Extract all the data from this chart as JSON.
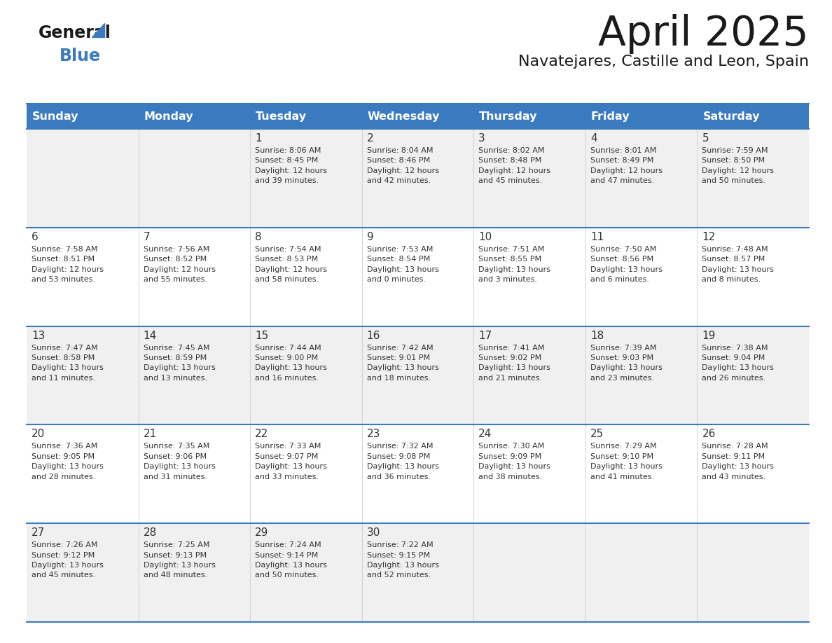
{
  "title": "April 2025",
  "subtitle": "Navatejares, Castille and Leon, Spain",
  "header_bg": "#3a7abf",
  "header_text": "#ffffff",
  "row_bg_even": "#f0f0f0",
  "row_bg_odd": "#ffffff",
  "border_color": "#3a7abf",
  "day_headers": [
    "Sunday",
    "Monday",
    "Tuesday",
    "Wednesday",
    "Thursday",
    "Friday",
    "Saturday"
  ],
  "days": [
    {
      "day": "",
      "info": ""
    },
    {
      "day": "",
      "info": ""
    },
    {
      "day": "1",
      "info": "Sunrise: 8:06 AM\nSunset: 8:45 PM\nDaylight: 12 hours\nand 39 minutes."
    },
    {
      "day": "2",
      "info": "Sunrise: 8:04 AM\nSunset: 8:46 PM\nDaylight: 12 hours\nand 42 minutes."
    },
    {
      "day": "3",
      "info": "Sunrise: 8:02 AM\nSunset: 8:48 PM\nDaylight: 12 hours\nand 45 minutes."
    },
    {
      "day": "4",
      "info": "Sunrise: 8:01 AM\nSunset: 8:49 PM\nDaylight: 12 hours\nand 47 minutes."
    },
    {
      "day": "5",
      "info": "Sunrise: 7:59 AM\nSunset: 8:50 PM\nDaylight: 12 hours\nand 50 minutes."
    },
    {
      "day": "6",
      "info": "Sunrise: 7:58 AM\nSunset: 8:51 PM\nDaylight: 12 hours\nand 53 minutes."
    },
    {
      "day": "7",
      "info": "Sunrise: 7:56 AM\nSunset: 8:52 PM\nDaylight: 12 hours\nand 55 minutes."
    },
    {
      "day": "8",
      "info": "Sunrise: 7:54 AM\nSunset: 8:53 PM\nDaylight: 12 hours\nand 58 minutes."
    },
    {
      "day": "9",
      "info": "Sunrise: 7:53 AM\nSunset: 8:54 PM\nDaylight: 13 hours\nand 0 minutes."
    },
    {
      "day": "10",
      "info": "Sunrise: 7:51 AM\nSunset: 8:55 PM\nDaylight: 13 hours\nand 3 minutes."
    },
    {
      "day": "11",
      "info": "Sunrise: 7:50 AM\nSunset: 8:56 PM\nDaylight: 13 hours\nand 6 minutes."
    },
    {
      "day": "12",
      "info": "Sunrise: 7:48 AM\nSunset: 8:57 PM\nDaylight: 13 hours\nand 8 minutes."
    },
    {
      "day": "13",
      "info": "Sunrise: 7:47 AM\nSunset: 8:58 PM\nDaylight: 13 hours\nand 11 minutes."
    },
    {
      "day": "14",
      "info": "Sunrise: 7:45 AM\nSunset: 8:59 PM\nDaylight: 13 hours\nand 13 minutes."
    },
    {
      "day": "15",
      "info": "Sunrise: 7:44 AM\nSunset: 9:00 PM\nDaylight: 13 hours\nand 16 minutes."
    },
    {
      "day": "16",
      "info": "Sunrise: 7:42 AM\nSunset: 9:01 PM\nDaylight: 13 hours\nand 18 minutes."
    },
    {
      "day": "17",
      "info": "Sunrise: 7:41 AM\nSunset: 9:02 PM\nDaylight: 13 hours\nand 21 minutes."
    },
    {
      "day": "18",
      "info": "Sunrise: 7:39 AM\nSunset: 9:03 PM\nDaylight: 13 hours\nand 23 minutes."
    },
    {
      "day": "19",
      "info": "Sunrise: 7:38 AM\nSunset: 9:04 PM\nDaylight: 13 hours\nand 26 minutes."
    },
    {
      "day": "20",
      "info": "Sunrise: 7:36 AM\nSunset: 9:05 PM\nDaylight: 13 hours\nand 28 minutes."
    },
    {
      "day": "21",
      "info": "Sunrise: 7:35 AM\nSunset: 9:06 PM\nDaylight: 13 hours\nand 31 minutes."
    },
    {
      "day": "22",
      "info": "Sunrise: 7:33 AM\nSunset: 9:07 PM\nDaylight: 13 hours\nand 33 minutes."
    },
    {
      "day": "23",
      "info": "Sunrise: 7:32 AM\nSunset: 9:08 PM\nDaylight: 13 hours\nand 36 minutes."
    },
    {
      "day": "24",
      "info": "Sunrise: 7:30 AM\nSunset: 9:09 PM\nDaylight: 13 hours\nand 38 minutes."
    },
    {
      "day": "25",
      "info": "Sunrise: 7:29 AM\nSunset: 9:10 PM\nDaylight: 13 hours\nand 41 minutes."
    },
    {
      "day": "26",
      "info": "Sunrise: 7:28 AM\nSunset: 9:11 PM\nDaylight: 13 hours\nand 43 minutes."
    },
    {
      "day": "27",
      "info": "Sunrise: 7:26 AM\nSunset: 9:12 PM\nDaylight: 13 hours\nand 45 minutes."
    },
    {
      "day": "28",
      "info": "Sunrise: 7:25 AM\nSunset: 9:13 PM\nDaylight: 13 hours\nand 48 minutes."
    },
    {
      "day": "29",
      "info": "Sunrise: 7:24 AM\nSunset: 9:14 PM\nDaylight: 13 hours\nand 50 minutes."
    },
    {
      "day": "30",
      "info": "Sunrise: 7:22 AM\nSunset: 9:15 PM\nDaylight: 13 hours\nand 52 minutes."
    },
    {
      "day": "",
      "info": ""
    },
    {
      "day": "",
      "info": ""
    },
    {
      "day": "",
      "info": ""
    },
    {
      "day": "",
      "info": ""
    }
  ],
  "num_cols": 7,
  "num_data_rows": 5
}
